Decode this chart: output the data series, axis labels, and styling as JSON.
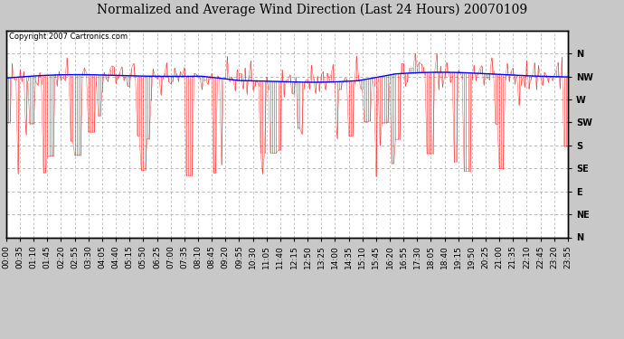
{
  "title": "Normalized and Average Wind Direction (Last 24 Hours) 20070109",
  "copyright_text": "Copyright 2007 Cartronics.com",
  "background_color": "#c8c8c8",
  "plot_bg_color": "#ffffff",
  "y_labels": [
    "N",
    "NW",
    "W",
    "SW",
    "S",
    "SE",
    "E",
    "NE",
    "N"
  ],
  "y_values": [
    360,
    315,
    270,
    225,
    180,
    135,
    90,
    45,
    0
  ],
  "ylim": [
    0,
    405
  ],
  "red_line_color": "#ff0000",
  "blue_line_color": "#0000ff",
  "grid_color": "#b0b0b0",
  "title_fontsize": 10,
  "copyright_fontsize": 6,
  "tick_fontsize": 6.5,
  "num_points": 288,
  "seed": 42
}
